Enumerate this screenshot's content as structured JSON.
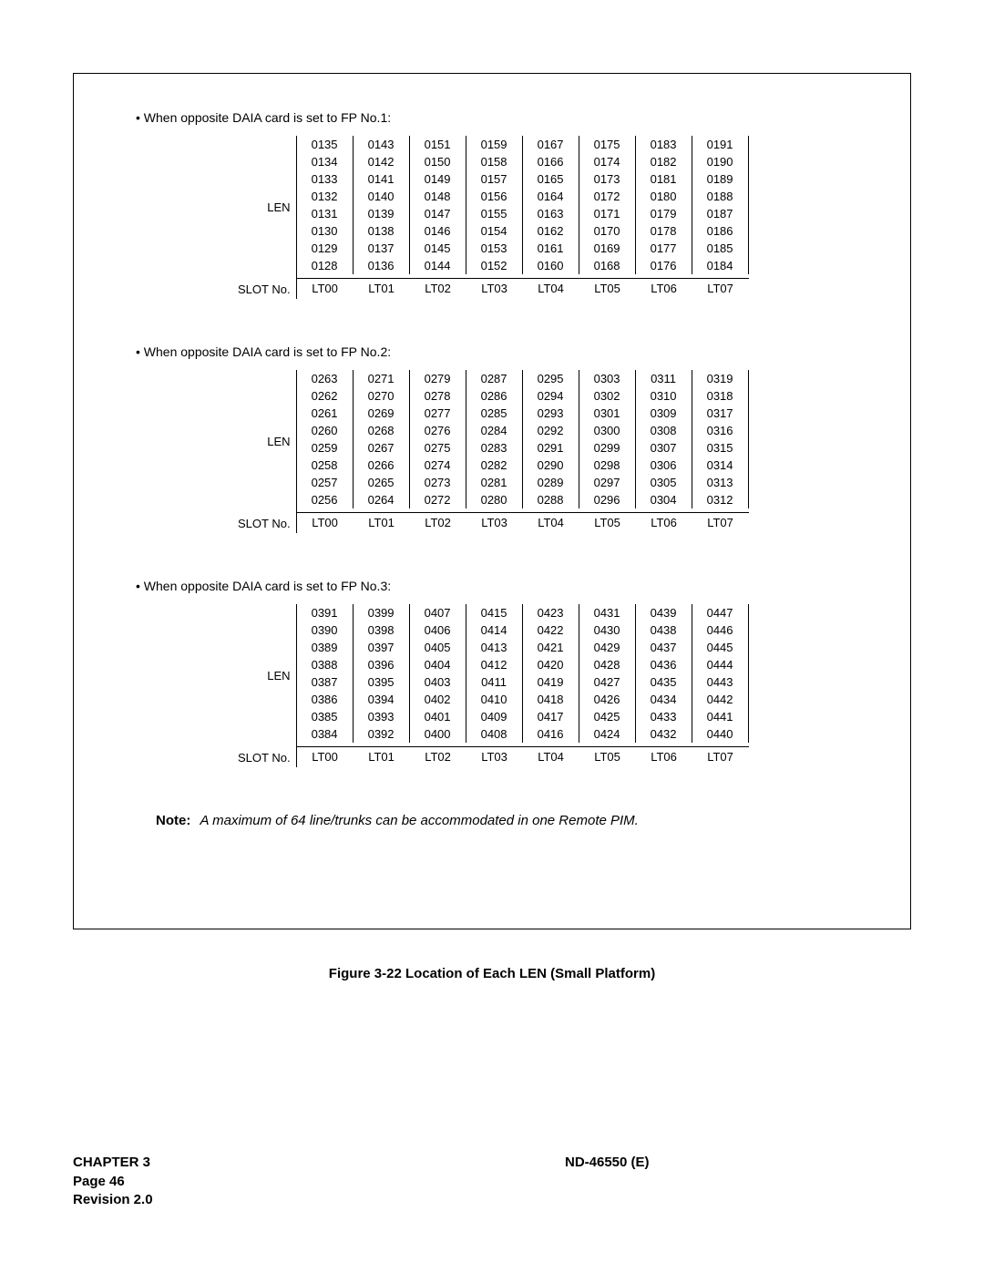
{
  "sections": [
    {
      "caption": "When opposite DAIA card is set to FP No.1:",
      "lenLabel": "LEN",
      "slotLabel": "SLOT No.",
      "slots": [
        "LT00",
        "LT01",
        "LT02",
        "LT03",
        "LT04",
        "LT05",
        "LT06",
        "LT07"
      ],
      "rows": [
        [
          "0135",
          "0143",
          "0151",
          "0159",
          "0167",
          "0175",
          "0183",
          "0191"
        ],
        [
          "0134",
          "0142",
          "0150",
          "0158",
          "0166",
          "0174",
          "0182",
          "0190"
        ],
        [
          "0133",
          "0141",
          "0149",
          "0157",
          "0165",
          "0173",
          "0181",
          "0189"
        ],
        [
          "0132",
          "0140",
          "0148",
          "0156",
          "0164",
          "0172",
          "0180",
          "0188"
        ],
        [
          "0131",
          "0139",
          "0147",
          "0155",
          "0163",
          "0171",
          "0179",
          "0187"
        ],
        [
          "0130",
          "0138",
          "0146",
          "0154",
          "0162",
          "0170",
          "0178",
          "0186"
        ],
        [
          "0129",
          "0137",
          "0145",
          "0153",
          "0161",
          "0169",
          "0177",
          "0185"
        ],
        [
          "0128",
          "0136",
          "0144",
          "0152",
          "0160",
          "0168",
          "0176",
          "0184"
        ]
      ]
    },
    {
      "caption": "When opposite DAIA card is set to FP No.2:",
      "lenLabel": "LEN",
      "slotLabel": "SLOT No.",
      "slots": [
        "LT00",
        "LT01",
        "LT02",
        "LT03",
        "LT04",
        "LT05",
        "LT06",
        "LT07"
      ],
      "rows": [
        [
          "0263",
          "0271",
          "0279",
          "0287",
          "0295",
          "0303",
          "0311",
          "0319"
        ],
        [
          "0262",
          "0270",
          "0278",
          "0286",
          "0294",
          "0302",
          "0310",
          "0318"
        ],
        [
          "0261",
          "0269",
          "0277",
          "0285",
          "0293",
          "0301",
          "0309",
          "0317"
        ],
        [
          "0260",
          "0268",
          "0276",
          "0284",
          "0292",
          "0300",
          "0308",
          "0316"
        ],
        [
          "0259",
          "0267",
          "0275",
          "0283",
          "0291",
          "0299",
          "0307",
          "0315"
        ],
        [
          "0258",
          "0266",
          "0274",
          "0282",
          "0290",
          "0298",
          "0306",
          "0314"
        ],
        [
          "0257",
          "0265",
          "0273",
          "0281",
          "0289",
          "0297",
          "0305",
          "0313"
        ],
        [
          "0256",
          "0264",
          "0272",
          "0280",
          "0288",
          "0296",
          "0304",
          "0312"
        ]
      ]
    },
    {
      "caption": "When opposite DAIA card is set to FP No.3:",
      "lenLabel": "LEN",
      "slotLabel": "SLOT No.",
      "slots": [
        "LT00",
        "LT01",
        "LT02",
        "LT03",
        "LT04",
        "LT05",
        "LT06",
        "LT07"
      ],
      "rows": [
        [
          "0391",
          "0399",
          "0407",
          "0415",
          "0423",
          "0431",
          "0439",
          "0447"
        ],
        [
          "0390",
          "0398",
          "0406",
          "0414",
          "0422",
          "0430",
          "0438",
          "0446"
        ],
        [
          "0389",
          "0397",
          "0405",
          "0413",
          "0421",
          "0429",
          "0437",
          "0445"
        ],
        [
          "0388",
          "0396",
          "0404",
          "0412",
          "0420",
          "0428",
          "0436",
          "0444"
        ],
        [
          "0387",
          "0395",
          "0403",
          "0411",
          "0419",
          "0427",
          "0435",
          "0443"
        ],
        [
          "0386",
          "0394",
          "0402",
          "0410",
          "0418",
          "0426",
          "0434",
          "0442"
        ],
        [
          "0385",
          "0393",
          "0401",
          "0409",
          "0417",
          "0425",
          "0433",
          "0441"
        ],
        [
          "0384",
          "0392",
          "0400",
          "0408",
          "0416",
          "0424",
          "0432",
          "0440"
        ]
      ]
    }
  ],
  "note": {
    "label": "Note:",
    "text": "A maximum of 64 line/trunks can be accommodated in one Remote PIM."
  },
  "figureCaption": "Figure 3-22    Location of Each LEN (Small Platform)",
  "footer": {
    "chapter": "CHAPTER 3",
    "page": "Page 46",
    "revision": "Revision 2.0",
    "doc": "ND-46550 (E)"
  }
}
